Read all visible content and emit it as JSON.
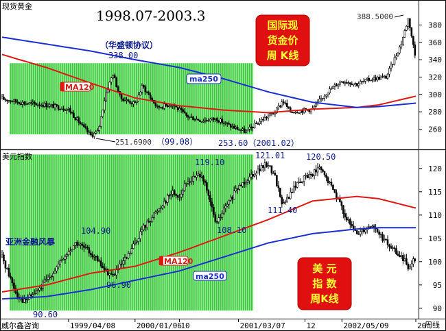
{
  "window": {
    "top_pane_label": "现货黄金",
    "bottom_pane_label": "美元指数",
    "footer_left": "威尔鑫咨询",
    "footer_right": "周线"
  },
  "colors": {
    "candle": "#000000",
    "ma120": "#dd1a12",
    "ma250": "#1a2fd0",
    "highlight": "#5ad65a",
    "title": "#1010c8",
    "annotation": "#0a1a8c",
    "callout_bg": "#e01010",
    "callout_text": "#ffff33"
  },
  "chart_data": [
    {
      "type": "candlestick",
      "title": "1998.07-2003.3",
      "callout": [
        "国际现",
        "货金价",
        "周  K线"
      ],
      "xlabel": "",
      "ylabel": "",
      "ylim": [
        243,
        393
      ],
      "yticks": [
        260,
        280,
        300,
        320,
        340,
        360,
        380
      ],
      "xlim": [
        "1998-07",
        "2003-03"
      ],
      "highlight_span": [
        "1998-08",
        "2001-05"
      ],
      "highlight_ylim": [
        254,
        336
      ],
      "grid": false,
      "legend": "none",
      "series": [
        {
          "name": "MA120",
          "points": [
            [
              "1998-07",
              346
            ],
            [
              "1999-01",
              331
            ],
            [
              "1999-07",
              313
            ],
            [
              "2000-01",
              296
            ],
            [
              "2000-07",
              287
            ],
            [
              "2001-01",
              282
            ],
            [
              "2001-07",
              279
            ],
            [
              "2002-01",
              283
            ],
            [
              "2002-07",
              285
            ],
            [
              "2002-10",
              288
            ],
            [
              "2003-03",
              298
            ]
          ]
        },
        {
          "name": "ma250",
          "points": [
            [
              "1998-07",
              366
            ],
            [
              "1999-01",
              358
            ],
            [
              "1999-07",
              350
            ],
            [
              "2000-01",
              340
            ],
            [
              "2000-07",
              331
            ],
            [
              "2001-01",
              318
            ],
            [
              "2001-07",
              303
            ],
            [
              "2002-01",
              291
            ],
            [
              "2002-07",
              285
            ],
            [
              "2002-10",
              286
            ],
            [
              "2003-03",
              290
            ]
          ]
        },
        {
          "name": "price",
          "points": [
            [
              "1998-07",
              295
            ],
            [
              "1998-10",
              290
            ],
            [
              "1999-01",
              288
            ],
            [
              "1999-04",
              283
            ],
            [
              "1999-06",
              262
            ],
            [
              "1999-07",
              253
            ],
            [
              "1999-08",
              257
            ],
            [
              "1999-09",
              300
            ],
            [
              "1999-10",
              324
            ],
            [
              "1999-11",
              296
            ],
            [
              "2000-01",
              289
            ],
            [
              "2000-02",
              310
            ],
            [
              "2000-04",
              285
            ],
            [
              "2000-06",
              289
            ],
            [
              "2000-08",
              275
            ],
            [
              "2000-10",
              270
            ],
            [
              "2000-12",
              272
            ],
            [
              "2001-02",
              263
            ],
            [
              "2001-04",
              257
            ],
            [
              "2001-06",
              270
            ],
            [
              "2001-08",
              280
            ],
            [
              "2001-09",
              293
            ],
            [
              "2001-10",
              280
            ],
            [
              "2002-01",
              283
            ],
            [
              "2002-03",
              303
            ],
            [
              "2002-05",
              316
            ],
            [
              "2002-07",
              312
            ],
            [
              "2002-09",
              318
            ],
            [
              "2002-11",
              320
            ],
            [
              "2003-01",
              358
            ],
            [
              "2003-02",
              388
            ],
            [
              "2003-03",
              340
            ]
          ]
        }
      ],
      "annotations": [
        {
          "text": "（华盛顿协议）",
          "x": "1999-09",
          "y": 347
        },
        {
          "text": "338.00",
          "x": "1999-10",
          "y": 338
        },
        {
          "text": "MA120",
          "x": "1999-02",
          "y": 314
        },
        {
          "text": "ma250",
          "x": "2000-06",
          "y": 323
        },
        {
          "text": "251.6900",
          "x": "1999-07",
          "y": 251.69
        },
        {
          "text": "（99.08）",
          "x": "1999-08",
          "y": 251.69
        },
        {
          "text": "253.60（2001.02）",
          "x": "2001-02",
          "y": 253.6
        },
        {
          "text": "388.5000",
          "x": "2003-02",
          "y": 388.5
        }
      ]
    },
    {
      "type": "candlestick",
      "callout": [
        "美  元",
        "指  数",
        "周K线"
      ],
      "xlabel": "",
      "ylabel": "",
      "ylim": [
        88.5,
        123.5
      ],
      "yticks": [
        90,
        95,
        100,
        105,
        110,
        115,
        120
      ],
      "xlim": [
        "1998-07",
        "2003-03"
      ],
      "highlight_span": [
        "1998-08",
        "2001-05"
      ],
      "highlight_ylim": [
        89.5,
        123
      ],
      "x_tick_labels": [
        "1999/04/08",
        "2000/01/06",
        "10",
        "2001/03/07",
        "12",
        "2002/05/09",
        "20"
      ],
      "x_tick_dates": [
        "1999-04",
        "2000-01",
        "2000-07",
        "2001-03",
        "2001-12",
        "2002-05",
        "2003-03"
      ],
      "grid": false,
      "legend": "none",
      "series": [
        {
          "name": "MA120",
          "points": [
            [
              "1998-07",
              93.5
            ],
            [
              "1999-01",
              95
            ],
            [
              "1999-07",
              97.5
            ],
            [
              "2000-01",
              99
            ],
            [
              "2000-07",
              102
            ],
            [
              "2001-01",
              105.5
            ],
            [
              "2001-07",
              109
            ],
            [
              "2002-01",
              113
            ],
            [
              "2002-07",
              114
            ],
            [
              "2002-10",
              113.5
            ],
            [
              "2003-03",
              111.5
            ]
          ]
        },
        {
          "name": "ma250",
          "points": [
            [
              "1998-07",
              92
            ],
            [
              "1999-01",
              92.5
            ],
            [
              "1999-07",
              94
            ],
            [
              "2000-01",
              96
            ],
            [
              "2000-07",
              98
            ],
            [
              "2001-01",
              101
            ],
            [
              "2001-07",
              104
            ],
            [
              "2002-01",
              106
            ],
            [
              "2002-07",
              107
            ],
            [
              "2002-10",
              107.3
            ],
            [
              "2003-03",
              107.3
            ]
          ]
        },
        {
          "name": "price",
          "points": [
            [
              "1998-07",
              101
            ],
            [
              "1998-08",
              97
            ],
            [
              "1998-09",
              93
            ],
            [
              "1998-10",
              91.5
            ],
            [
              "1998-12",
              94
            ],
            [
              "1999-02",
              98
            ],
            [
              "1999-05",
              104
            ],
            [
              "1999-07",
              102
            ],
            [
              "1999-09",
              98
            ],
            [
              "1999-10",
              97
            ],
            [
              "1999-12",
              101
            ],
            [
              "2000-02",
              107
            ],
            [
              "2000-04",
              111
            ],
            [
              "2000-06",
              115
            ],
            [
              "2000-07",
              114
            ],
            [
              "2000-08",
              117
            ],
            [
              "2000-10",
              119
            ],
            [
              "2000-12",
              108
            ],
            [
              "2001-01",
              111
            ],
            [
              "2001-03",
              116
            ],
            [
              "2001-05",
              119
            ],
            [
              "2001-07",
              121
            ],
            [
              "2001-08",
              118
            ],
            [
              "2001-09",
              112
            ],
            [
              "2001-11",
              117
            ],
            [
              "2002-01",
              119
            ],
            [
              "2002-02",
              120
            ],
            [
              "2002-04",
              115
            ],
            [
              "2002-06",
              108
            ],
            [
              "2002-07",
              106
            ],
            [
              "2002-09",
              108
            ],
            [
              "2002-11",
              104
            ],
            [
              "2003-01",
              101
            ],
            [
              "2003-02",
              99
            ],
            [
              "2003-03",
              101
            ]
          ]
        }
      ],
      "annotations": [
        {
          "text": "119.10",
          "x": "2000-09",
          "y": 119.1
        },
        {
          "text": "121.01",
          "x": "2001-07",
          "y": 121.01
        },
        {
          "text": "120.50",
          "x": "2002-02",
          "y": 120.5
        },
        {
          "text": "104.90",
          "x": "1999-05",
          "y": 104.9
        },
        {
          "text": "亚洲金融风暴",
          "x": "1998-07",
          "y": 105
        },
        {
          "text": "108.10",
          "x": "2000-12",
          "y": 108.1
        },
        {
          "text": "111.40",
          "x": "2001-09",
          "y": 111.4
        },
        {
          "text": "MA120",
          "x": "2000-04",
          "y": 100
        },
        {
          "text": "ma250",
          "x": "2000-07",
          "y": 97.8
        },
        {
          "text": "96.90",
          "x": "1999-10",
          "y": 96.9
        },
        {
          "text": "90.60",
          "x": "1998-10",
          "y": 90.6
        }
      ]
    }
  ]
}
